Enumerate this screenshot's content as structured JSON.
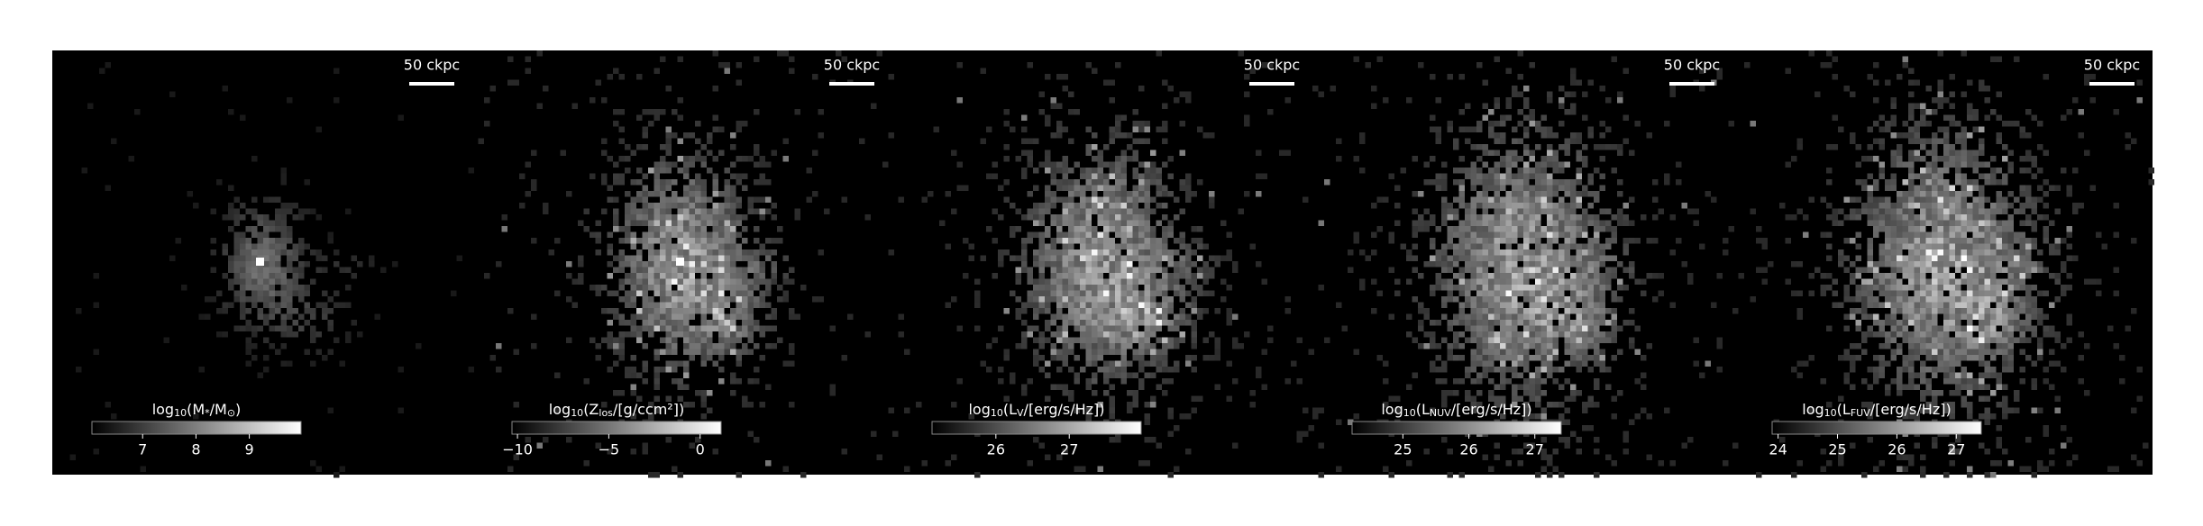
{
  "panels": [
    {
      "scale_bar": "50 ckpc",
      "cbar_label": [
        "log",
        "10",
        "(M",
        "*",
        "/M",
        "⊙",
        ")"
      ],
      "clim": [
        6.05,
        9.97
      ],
      "ticks": [
        7,
        8,
        9
      ]
    },
    {
      "scale_bar": "50 ckpc",
      "cbar_label": [
        "log",
        "10",
        "(Z",
        "los",
        "/[g/ccm²])"
      ],
      "clim": [
        -10.3,
        1.15
      ],
      "ticks": [
        {
          "value": -10,
          "label": "−10"
        },
        {
          "value": -5,
          "label": "−5"
        },
        0
      ]
    },
    {
      "scale_bar": "50 ckpc",
      "cbar_label": [
        "log",
        "10",
        "(L",
        "V",
        "/[erg/s/Hz])"
      ],
      "clim": [
        25.13,
        27.98
      ],
      "ticks": [
        26,
        27
      ]
    },
    {
      "scale_bar": "50 ckpc",
      "cbar_label": [
        "log",
        "10",
        "(L",
        "NUV",
        "/[erg/s/Hz])"
      ],
      "clim": [
        24.23,
        27.4
      ],
      "ticks": [
        25,
        26,
        27
      ]
    },
    {
      "scale_bar": "50 ckpc",
      "cbar_label": [
        "log",
        "10",
        "(L",
        "FUV",
        "/[erg/s/Hz])"
      ],
      "clim": [
        23.9,
        27.42
      ],
      "ticks": [
        24,
        25,
        26,
        27
      ]
    }
  ]
}
